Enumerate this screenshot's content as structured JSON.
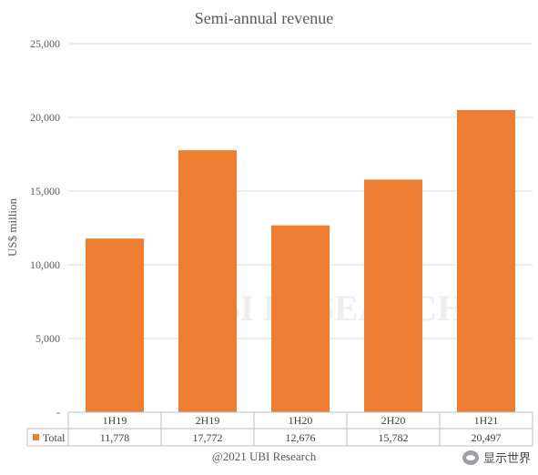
{
  "chart_data": {
    "type": "bar",
    "title": "Semi-annual revenue",
    "ylabel": "US$ million",
    "xlabel": "",
    "categories": [
      "1H19",
      "2H19",
      "1H20",
      "2H20",
      "1H21"
    ],
    "series": [
      {
        "name": "Total",
        "values": [
          11778,
          17772,
          12676,
          15782,
          20497
        ],
        "labels": [
          "11,778",
          "17,772",
          "12,676",
          "15,782",
          "20,497"
        ]
      }
    ],
    "ylim": [
      0,
      25000
    ],
    "yticks": [
      0,
      5000,
      10000,
      15000,
      20000,
      25000
    ],
    "ytick_labels": [
      "-",
      "5,000",
      "10,000",
      "15,000",
      "20,000",
      "25,000"
    ],
    "grid": true,
    "legend": "data-table",
    "bar_color": "#ED7D31",
    "credit": "@2021 UBI Research",
    "watermark": "UBI RESEARCH"
  },
  "badge": {
    "icon": "wechat-icon",
    "text": "显示世界"
  }
}
